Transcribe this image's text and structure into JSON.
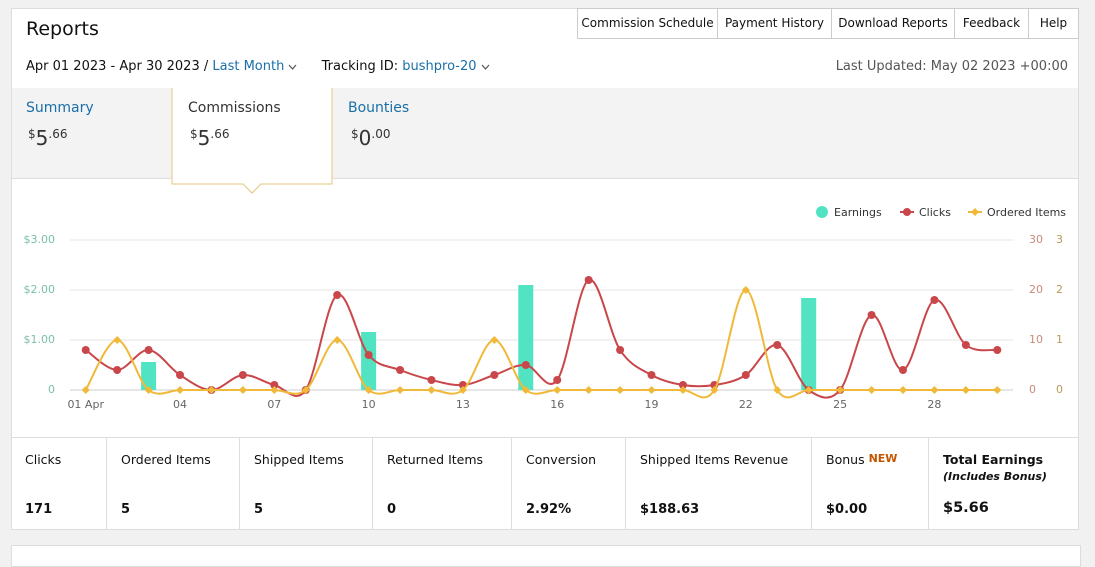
{
  "header": {
    "title": "Reports",
    "menu": [
      "Commission Schedule",
      "Payment History",
      "Download Reports",
      "Feedback",
      "Help"
    ],
    "date_range": "Apr 01 2023 - Apr 30 2023 /",
    "period": "Last Month",
    "tracking_label": "Tracking ID:",
    "tracking_id": "bushpro-20",
    "last_updated": "Last Updated: May 02 2023 +00:00"
  },
  "tabs": [
    {
      "label": "Summary",
      "currency": "$",
      "whole": "5",
      "cents": ".66"
    },
    {
      "label": "Commissions",
      "currency": "$",
      "whole": "5",
      "cents": ".66"
    },
    {
      "label": "Bounties",
      "currency": "$",
      "whole": "0",
      "cents": ".00"
    }
  ],
  "chart_data": {
    "type": "combo",
    "categories": [
      "01 Apr",
      null,
      null,
      "04",
      null,
      null,
      "07",
      null,
      null,
      "10",
      null,
      null,
      "13",
      null,
      null,
      "16",
      null,
      null,
      "19",
      null,
      null,
      "22",
      null,
      null,
      "25",
      null,
      null,
      "28",
      null,
      null
    ],
    "series": [
      {
        "name": "Earnings",
        "type": "bar",
        "axis": "y",
        "color": "#52e3c2",
        "values": [
          0,
          0,
          0.56,
          0,
          0,
          0,
          0,
          0,
          0,
          1.16,
          0,
          0,
          0,
          0,
          2.1,
          0,
          0,
          0,
          0,
          0,
          0,
          0,
          0,
          1.84,
          0,
          0,
          0,
          0,
          0,
          0
        ]
      },
      {
        "name": "Clicks",
        "type": "line",
        "axis": "y2",
        "color": "#c9474b",
        "values": [
          8,
          4,
          8,
          3,
          0,
          3,
          1,
          0,
          19,
          7,
          4,
          2,
          1,
          3,
          5,
          2,
          22,
          8,
          3,
          1,
          1,
          3,
          9,
          0,
          0,
          15,
          4,
          18,
          9,
          8
        ]
      },
      {
        "name": "Ordered Items",
        "type": "line",
        "axis": "y3",
        "color": "#f0b93a",
        "values": [
          0,
          1,
          0,
          0,
          0,
          0,
          0,
          0,
          1,
          0,
          0,
          0,
          0,
          1,
          0,
          0,
          0,
          0,
          0,
          0,
          0,
          2,
          0,
          0,
          0,
          0,
          0,
          0,
          0,
          0
        ]
      }
    ],
    "ylim": [
      0,
      3
    ],
    "yticks": [
      0,
      {
        "value": 1,
        "label": "$1.00"
      },
      {
        "value": 2,
        "label": "$2.00"
      },
      {
        "value": 3,
        "label": "$3.00"
      }
    ],
    "y2lim": [
      0,
      30
    ],
    "y2ticks": [
      0,
      10,
      20,
      30
    ],
    "y3lim": [
      0,
      3
    ],
    "y3ticks": [
      0,
      1,
      2,
      3
    ],
    "grid": true,
    "legend": "top-right"
  },
  "stats": [
    {
      "label": "Clicks",
      "value": "171"
    },
    {
      "label": "Ordered Items",
      "value": "5"
    },
    {
      "label": "Shipped Items",
      "value": "5"
    },
    {
      "label": "Returned Items",
      "value": "0"
    },
    {
      "label": "Conversion",
      "value": "2.92%"
    },
    {
      "label": "Shipped Items Revenue",
      "value": "$188.63"
    },
    {
      "label": "Bonus",
      "badge": "NEW",
      "value": "$0.00"
    },
    {
      "label": "Total Earnings",
      "note": "(Includes Bonus)",
      "value": "$5.66"
    }
  ]
}
